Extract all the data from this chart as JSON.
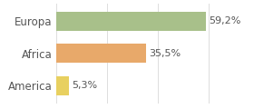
{
  "categories": [
    "America",
    "Africa",
    "Europa"
  ],
  "values": [
    5.3,
    35.5,
    59.2
  ],
  "labels": [
    "5,3%",
    "35,5%",
    "59,2%"
  ],
  "bar_colors": [
    "#e8d060",
    "#e8a96a",
    "#a8c08a"
  ],
  "background_color": "#ffffff",
  "xlim": [
    0,
    75
  ],
  "label_fontsize": 8,
  "tick_fontsize": 8.5
}
